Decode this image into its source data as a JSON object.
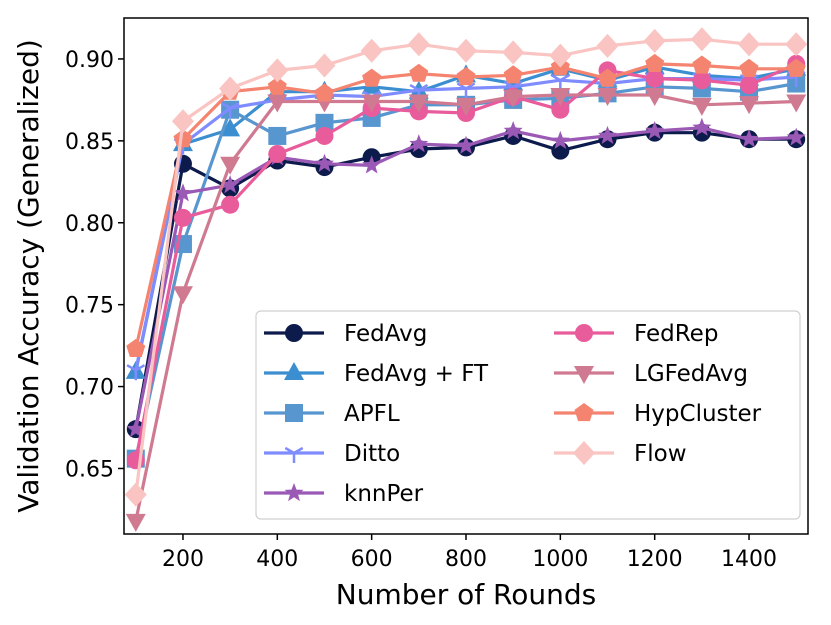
{
  "chart_data": {
    "type": "line",
    "title": "",
    "xlabel": "Number of Rounds",
    "ylabel": "Validation Accuracy (Generalized)",
    "xlim": [
      75,
      1525
    ],
    "ylim": [
      0.61,
      0.925
    ],
    "xticks": [
      200,
      400,
      600,
      800,
      1000,
      1200,
      1400
    ],
    "xtick_labels": [
      "200",
      "400",
      "600",
      "800",
      "1000",
      "1200",
      "1400"
    ],
    "yticks": [
      0.65,
      0.7,
      0.75,
      0.8,
      0.85,
      0.9
    ],
    "ytick_labels": [
      "0.65",
      "0.70",
      "0.75",
      "0.80",
      "0.85",
      "0.90"
    ],
    "grid": false,
    "legend_position": "lower-right",
    "x": [
      100,
      200,
      300,
      400,
      500,
      600,
      700,
      800,
      900,
      1000,
      1100,
      1200,
      1300,
      1400,
      1500
    ],
    "series": [
      {
        "name": "FedAvg",
        "color": "#0d1b4c",
        "marker": "circle",
        "values": [
          0.674,
          0.836,
          0.821,
          0.838,
          0.834,
          0.84,
          0.845,
          0.846,
          0.853,
          0.844,
          0.851,
          0.855,
          0.855,
          0.851,
          0.851
        ]
      },
      {
        "name": "FedAvg + FT",
        "color": "#3b8fd0",
        "marker": "triangle-up",
        "values": [
          0.709,
          0.848,
          0.857,
          0.88,
          0.88,
          0.883,
          0.88,
          0.89,
          0.885,
          0.894,
          0.887,
          0.895,
          0.89,
          0.888,
          0.894
        ]
      },
      {
        "name": "APFL",
        "color": "#5896d0",
        "marker": "square",
        "values": [
          0.656,
          0.787,
          0.869,
          0.853,
          0.861,
          0.864,
          0.872,
          0.872,
          0.875,
          0.876,
          0.879,
          0.883,
          0.882,
          0.88,
          0.885
        ]
      },
      {
        "name": "Ditto",
        "color": "#7f8cff",
        "marker": "tri-down",
        "values": [
          0.71,
          0.848,
          0.87,
          0.875,
          0.878,
          0.877,
          0.881,
          0.882,
          0.883,
          0.887,
          0.885,
          0.888,
          0.888,
          0.887,
          0.889
        ]
      },
      {
        "name": "knnPer",
        "color": "#9b59b6",
        "marker": "star",
        "values": [
          0.674,
          0.818,
          0.823,
          0.84,
          0.836,
          0.835,
          0.848,
          0.847,
          0.856,
          0.85,
          0.853,
          0.856,
          0.858,
          0.851,
          0.852
        ]
      },
      {
        "name": "FedRep",
        "color": "#e95c9b",
        "marker": "circle",
        "values": [
          0.655,
          0.803,
          0.811,
          0.842,
          0.853,
          0.87,
          0.868,
          0.867,
          0.877,
          0.869,
          0.893,
          0.888,
          0.887,
          0.884,
          0.897
        ]
      },
      {
        "name": "LGFedAvg",
        "color": "#d07a92",
        "marker": "triangle-down",
        "values": [
          0.618,
          0.757,
          0.836,
          0.874,
          0.874,
          0.874,
          0.874,
          0.872,
          0.877,
          0.878,
          0.878,
          0.878,
          0.872,
          0.873,
          0.874
        ]
      },
      {
        "name": "HypCluster",
        "color": "#f4846f",
        "marker": "pentagon",
        "values": [
          0.723,
          0.851,
          0.88,
          0.883,
          0.879,
          0.888,
          0.891,
          0.889,
          0.89,
          0.895,
          0.888,
          0.897,
          0.896,
          0.894,
          0.894
        ]
      },
      {
        "name": "Flow",
        "color": "#f9c4c1",
        "marker": "diamond",
        "values": [
          0.634,
          0.862,
          0.882,
          0.893,
          0.896,
          0.905,
          0.909,
          0.905,
          0.904,
          0.902,
          0.908,
          0.911,
          0.912,
          0.909,
          0.909
        ]
      }
    ]
  }
}
